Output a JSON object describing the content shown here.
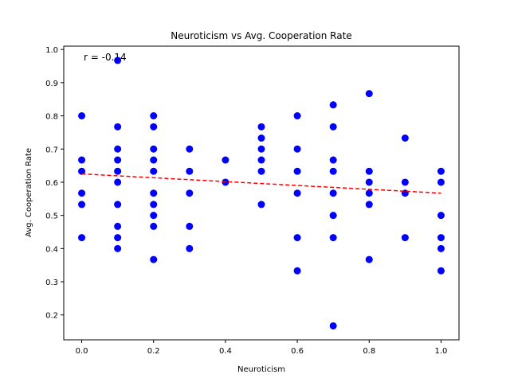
{
  "chart_data": {
    "type": "scatter",
    "title": "Neuroticism vs Avg. Cooperation Rate",
    "xlabel": "Neuroticism",
    "ylabel": "Avg. Cooperation Rate",
    "xlim": [
      -0.05,
      1.05
    ],
    "ylim": [
      0.125,
      1.01
    ],
    "xticks": [
      "0.0",
      "0.2",
      "0.4",
      "0.6",
      "0.8",
      "1.0"
    ],
    "yticks": [
      "0.2",
      "0.3",
      "0.4",
      "0.5",
      "0.6",
      "0.7",
      "0.8",
      "0.9",
      "1.0"
    ],
    "grid": false,
    "point_color": "#0000ff",
    "trend_color": "#ff0000",
    "annotation": "r = -0.14",
    "trendline": {
      "x": [
        0.0,
        1.0
      ],
      "y": [
        0.625,
        0.567
      ]
    },
    "points": [
      {
        "x": 0.0,
        "y": 0.8
      },
      {
        "x": 0.0,
        "y": 0.667
      },
      {
        "x": 0.0,
        "y": 0.633
      },
      {
        "x": 0.0,
        "y": 0.567
      },
      {
        "x": 0.0,
        "y": 0.533
      },
      {
        "x": 0.0,
        "y": 0.433
      },
      {
        "x": 0.1,
        "y": 0.967
      },
      {
        "x": 0.1,
        "y": 0.767
      },
      {
        "x": 0.1,
        "y": 0.7
      },
      {
        "x": 0.1,
        "y": 0.667
      },
      {
        "x": 0.1,
        "y": 0.633
      },
      {
        "x": 0.1,
        "y": 0.6
      },
      {
        "x": 0.1,
        "y": 0.533
      },
      {
        "x": 0.1,
        "y": 0.467
      },
      {
        "x": 0.1,
        "y": 0.433
      },
      {
        "x": 0.1,
        "y": 0.4
      },
      {
        "x": 0.2,
        "y": 0.8
      },
      {
        "x": 0.2,
        "y": 0.767
      },
      {
        "x": 0.2,
        "y": 0.7
      },
      {
        "x": 0.2,
        "y": 0.667
      },
      {
        "x": 0.2,
        "y": 0.633
      },
      {
        "x": 0.2,
        "y": 0.567
      },
      {
        "x": 0.2,
        "y": 0.533
      },
      {
        "x": 0.2,
        "y": 0.5
      },
      {
        "x": 0.2,
        "y": 0.467
      },
      {
        "x": 0.2,
        "y": 0.367
      },
      {
        "x": 0.3,
        "y": 0.7
      },
      {
        "x": 0.3,
        "y": 0.633
      },
      {
        "x": 0.3,
        "y": 0.567
      },
      {
        "x": 0.3,
        "y": 0.467
      },
      {
        "x": 0.3,
        "y": 0.4
      },
      {
        "x": 0.4,
        "y": 0.667
      },
      {
        "x": 0.4,
        "y": 0.6
      },
      {
        "x": 0.5,
        "y": 0.767
      },
      {
        "x": 0.5,
        "y": 0.733
      },
      {
        "x": 0.5,
        "y": 0.7
      },
      {
        "x": 0.5,
        "y": 0.667
      },
      {
        "x": 0.5,
        "y": 0.633
      },
      {
        "x": 0.5,
        "y": 0.533
      },
      {
        "x": 0.6,
        "y": 0.8
      },
      {
        "x": 0.6,
        "y": 0.7
      },
      {
        "x": 0.6,
        "y": 0.633
      },
      {
        "x": 0.6,
        "y": 0.567
      },
      {
        "x": 0.6,
        "y": 0.433
      },
      {
        "x": 0.6,
        "y": 0.333
      },
      {
        "x": 0.7,
        "y": 0.833
      },
      {
        "x": 0.7,
        "y": 0.767
      },
      {
        "x": 0.7,
        "y": 0.667
      },
      {
        "x": 0.7,
        "y": 0.633
      },
      {
        "x": 0.7,
        "y": 0.567
      },
      {
        "x": 0.7,
        "y": 0.5
      },
      {
        "x": 0.7,
        "y": 0.433
      },
      {
        "x": 0.7,
        "y": 0.167
      },
      {
        "x": 0.8,
        "y": 0.867
      },
      {
        "x": 0.8,
        "y": 0.633
      },
      {
        "x": 0.8,
        "y": 0.6
      },
      {
        "x": 0.8,
        "y": 0.567
      },
      {
        "x": 0.8,
        "y": 0.533
      },
      {
        "x": 0.8,
        "y": 0.367
      },
      {
        "x": 0.9,
        "y": 0.733
      },
      {
        "x": 0.9,
        "y": 0.6
      },
      {
        "x": 0.9,
        "y": 0.567
      },
      {
        "x": 0.9,
        "y": 0.433
      },
      {
        "x": 1.0,
        "y": 0.633
      },
      {
        "x": 1.0,
        "y": 0.6
      },
      {
        "x": 1.0,
        "y": 0.5
      },
      {
        "x": 1.0,
        "y": 0.433
      },
      {
        "x": 1.0,
        "y": 0.4
      },
      {
        "x": 1.0,
        "y": 0.333
      }
    ]
  }
}
